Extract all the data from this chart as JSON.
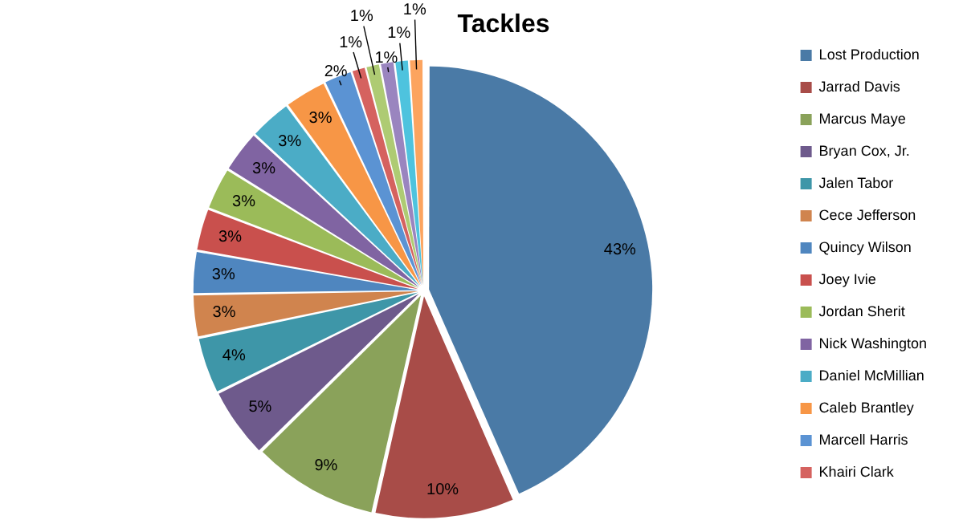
{
  "chart_data": {
    "type": "pie",
    "title": "Tackles",
    "categories": [
      "Lost Production",
      "Jarrad Davis",
      "Marcus Maye",
      "Bryan Cox, Jr.",
      "Jalen Tabor",
      "Cece Jefferson",
      "Quincy Wilson",
      "Joey Ivie",
      "Jordan Sherit",
      "Nick Washington",
      "Daniel McMillian",
      "Caleb Brantley",
      "Marcell Harris",
      "Khairi Clark",
      null,
      null,
      null,
      null
    ],
    "values": [
      43,
      10,
      9,
      5,
      4,
      3,
      3,
      3,
      3,
      3,
      3,
      3,
      2,
      1,
      1,
      1,
      1,
      1
    ],
    "colors": [
      "#4a7aa6",
      "#a84c48",
      "#8aa25a",
      "#6e5a8c",
      "#3e96a8",
      "#d0844e",
      "#4f86bf",
      "#c9504d",
      "#9bbb59",
      "#8064a2",
      "#4bacc6",
      "#f79646",
      "#5b93d3",
      "#d5625f",
      "#aecb73",
      "#9a85bf",
      "#4ec3de",
      "#fca45f"
    ],
    "value_labels": [
      "43%",
      "10%",
      "9%",
      "5%",
      "4%",
      "3%",
      "3%",
      "3%",
      "3%",
      "3%",
      "3%",
      "3%",
      "2%",
      "1%",
      "1%",
      "1%",
      "1%",
      "1%"
    ],
    "legend": "right"
  }
}
